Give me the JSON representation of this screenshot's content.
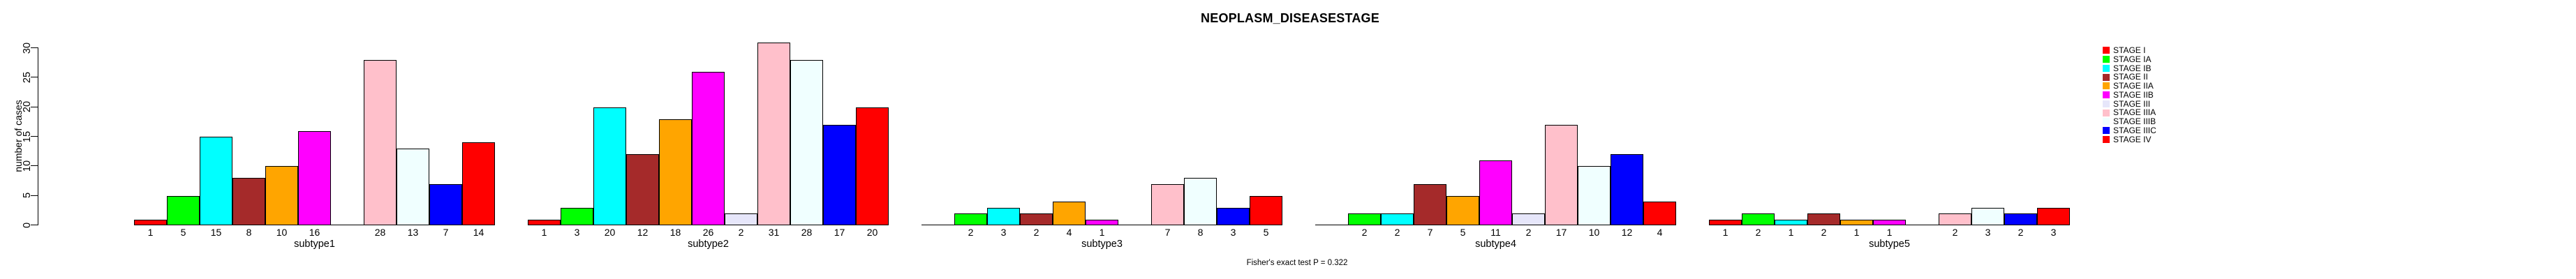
{
  "title": "NEOPLASM_DISEASESTAGE",
  "footer": "Fisher's exact test P = 0.322",
  "y_axis": {
    "label": "number of cases",
    "ticks": [
      0,
      5,
      10,
      15,
      20,
      25,
      30
    ]
  },
  "legend": {
    "position": "right",
    "entries": [
      {
        "label": "STAGE I",
        "color": "#FF0000"
      },
      {
        "label": "STAGE IA",
        "color": "#00FF00"
      },
      {
        "label": "STAGE IB",
        "color": "#00FFFF"
      },
      {
        "label": "STAGE II",
        "color": "#A52A2A"
      },
      {
        "label": "STAGE IIA",
        "color": "#FFA500"
      },
      {
        "label": "STAGE IIB",
        "color": "#FF00FF"
      },
      {
        "label": "STAGE III",
        "color": "#E6E6FA"
      },
      {
        "label": "STAGE IIIA",
        "color": "#FFC0CB"
      },
      {
        "label": "STAGE IIIB",
        "color": "#F0FFFF"
      },
      {
        "label": "STAGE IIIC",
        "color": "#0000FF"
      },
      {
        "label": "STAGE IV",
        "color": "#FF0000"
      }
    ]
  },
  "chart_data": {
    "type": "bar",
    "grouped": true,
    "title": "NEOPLASM_DISEASESTAGE",
    "categories": [
      "subtype1",
      "subtype2",
      "subtype3",
      "subtype4",
      "subtype5"
    ],
    "series": [
      {
        "name": "STAGE I",
        "color": "#FF0000",
        "values": [
          1,
          1,
          0,
          0,
          1
        ]
      },
      {
        "name": "STAGE IA",
        "color": "#00FF00",
        "values": [
          5,
          3,
          2,
          2,
          2
        ]
      },
      {
        "name": "STAGE IB",
        "color": "#00FFFF",
        "values": [
          15,
          20,
          3,
          2,
          1
        ]
      },
      {
        "name": "STAGE II",
        "color": "#A52A2A",
        "values": [
          8,
          12,
          2,
          7,
          2
        ]
      },
      {
        "name": "STAGE IIA",
        "color": "#FFA500",
        "values": [
          10,
          18,
          4,
          5,
          1
        ]
      },
      {
        "name": "STAGE IIB",
        "color": "#FF00FF",
        "values": [
          16,
          26,
          1,
          11,
          1
        ]
      },
      {
        "name": "STAGE III",
        "color": "#E6E6FA",
        "values": [
          0,
          2,
          0,
          2,
          0
        ]
      },
      {
        "name": "STAGE IIIA",
        "color": "#FFC0CB",
        "values": [
          28,
          31,
          7,
          17,
          2
        ]
      },
      {
        "name": "STAGE IIIB",
        "color": "#F0FFFF",
        "values": [
          13,
          28,
          8,
          10,
          3
        ]
      },
      {
        "name": "STAGE IIIC",
        "color": "#0000FF",
        "values": [
          7,
          17,
          3,
          12,
          2
        ]
      },
      {
        "name": "STAGE IV",
        "color": "#FF0000",
        "values": [
          14,
          20,
          5,
          4,
          3
        ]
      }
    ],
    "xlabel": "",
    "ylabel": "number of cases",
    "ylim": [
      0,
      30
    ],
    "y_ticks": [
      0,
      5,
      10,
      15,
      20,
      25,
      30
    ],
    "value_labels_under_bars": true,
    "zero_values_unlabeled": true,
    "legend_position": "right",
    "footer": "Fisher's exact test P = 0.322"
  }
}
